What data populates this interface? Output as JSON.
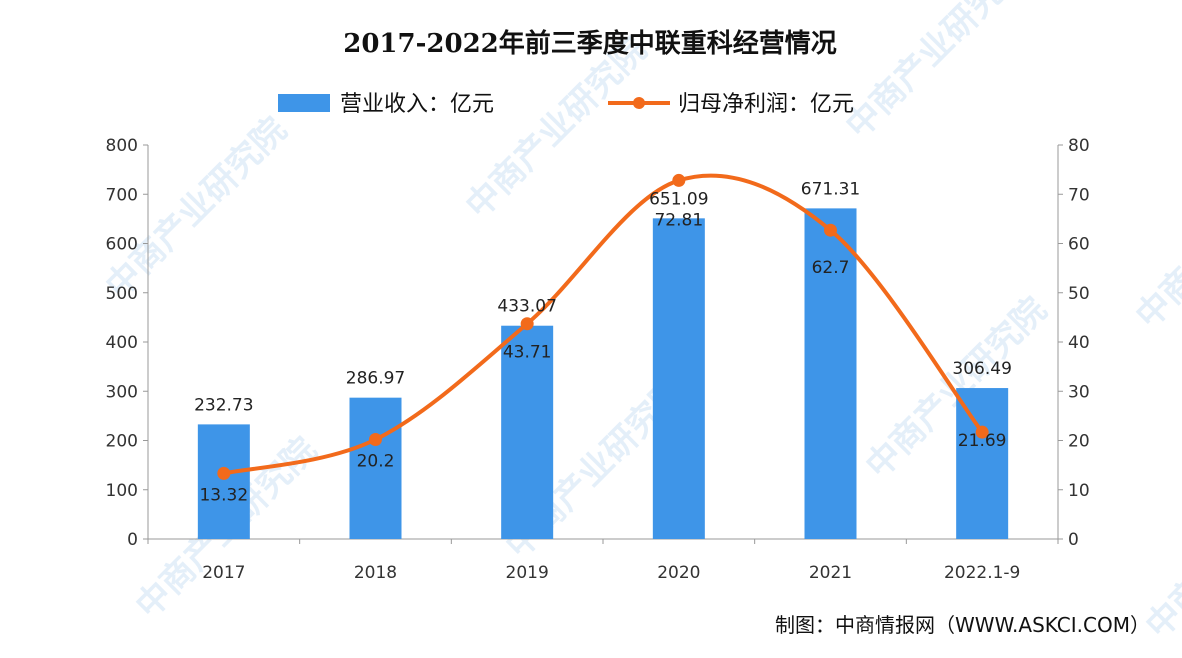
{
  "watermark": "中商产业研究院",
  "source": "制图：中商情报网（WWW.ASKCI.COM）",
  "chart_data": {
    "type": "bar+line",
    "title": "2017-2022年前三季度中联重科经营情况",
    "categories": [
      "2017",
      "2018",
      "2019",
      "2020",
      "2021",
      "2022.1-9"
    ],
    "series": [
      {
        "name": "营业收入：亿元",
        "type": "bar",
        "axis": "left",
        "color": "#3e95e8",
        "values": [
          232.73,
          286.97,
          433.07,
          651.09,
          671.31,
          306.49
        ],
        "labels": [
          "232.73",
          "286.97",
          "433.07",
          "651.09",
          "671.31",
          "306.49"
        ]
      },
      {
        "name": "归母净利润：亿元",
        "type": "line",
        "axis": "right",
        "color": "#f26a1b",
        "values": [
          13.32,
          20.2,
          43.71,
          72.81,
          62.7,
          21.69
        ],
        "labels": [
          "13.32",
          "20.2",
          "43.71",
          "72.81",
          "62.7",
          "21.69"
        ]
      }
    ],
    "y_left": {
      "min": 0,
      "max": 800,
      "step": 100,
      "ticks": [
        "0",
        "100",
        "200",
        "300",
        "400",
        "500",
        "600",
        "700",
        "800"
      ]
    },
    "y_right": {
      "min": 0,
      "max": 80,
      "step": 10,
      "ticks": [
        "0",
        "10",
        "20",
        "30",
        "40",
        "50",
        "60",
        "70",
        "80"
      ]
    },
    "grid": false,
    "legend": "top"
  }
}
